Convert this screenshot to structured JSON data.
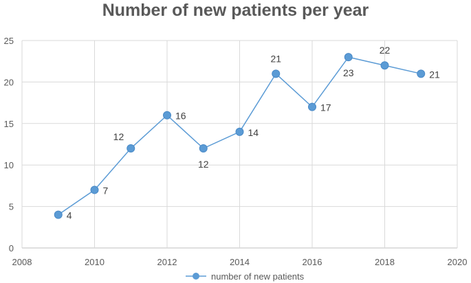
{
  "chart_data": {
    "type": "line",
    "title": "Number of new patients per year",
    "xlabel": "",
    "ylabel": "",
    "xlim": [
      2008,
      2020
    ],
    "ylim": [
      0,
      25
    ],
    "x_ticks": [
      2008,
      2010,
      2012,
      2014,
      2016,
      2018,
      2020
    ],
    "y_ticks": [
      0,
      5,
      10,
      15,
      20,
      25
    ],
    "grid": true,
    "legend_position": "bottom",
    "series": [
      {
        "name": "number of new patients",
        "color": "#5B9BD5",
        "x": [
          2009,
          2010,
          2011,
          2012,
          2013,
          2014,
          2015,
          2016,
          2017,
          2018,
          2019
        ],
        "y": [
          4,
          7,
          12,
          16,
          12,
          14,
          21,
          17,
          23,
          22,
          21
        ],
        "label_positions": [
          "right",
          "right",
          "above-left",
          "right",
          "below",
          "right",
          "above",
          "right",
          "below",
          "above",
          "right"
        ]
      }
    ]
  }
}
